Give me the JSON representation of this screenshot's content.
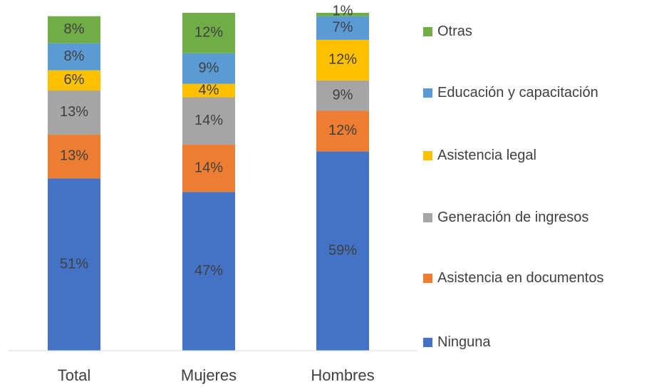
{
  "chart_data": {
    "type": "stacked_bar",
    "categories": [
      "Total",
      "Mujeres",
      "Hombres"
    ],
    "ylim": [
      0,
      100
    ],
    "series": [
      {
        "name": "Ninguna",
        "color": "#4472c4",
        "values": [
          51,
          47,
          59
        ],
        "value_labels": [
          "51%",
          "47%",
          "59%"
        ]
      },
      {
        "name": "Asistencia en documentos",
        "color": "#ed7d31",
        "values": [
          13,
          14,
          12
        ],
        "value_labels": [
          "13%",
          "14%",
          "12%"
        ]
      },
      {
        "name": "Generación de ingresos",
        "color": "#a5a5a5",
        "values": [
          13,
          14,
          9
        ],
        "value_labels": [
          "13%",
          "14%",
          "9%"
        ]
      },
      {
        "name": "Asistencia legal",
        "color": "#ffc000",
        "values": [
          6,
          4,
          12
        ],
        "value_labels": [
          "6%",
          "4%",
          "12%"
        ]
      },
      {
        "name": "Educación y capacitación",
        "color": "#5b9bd5",
        "values": [
          8,
          9,
          7
        ],
        "value_labels": [
          "8%",
          "9%",
          "7%"
        ]
      },
      {
        "name": "Otras",
        "color": "#70ad47",
        "values": [
          8,
          12,
          1
        ],
        "value_labels": [
          "8%",
          "12%",
          "1%"
        ]
      }
    ],
    "legend": "right"
  }
}
